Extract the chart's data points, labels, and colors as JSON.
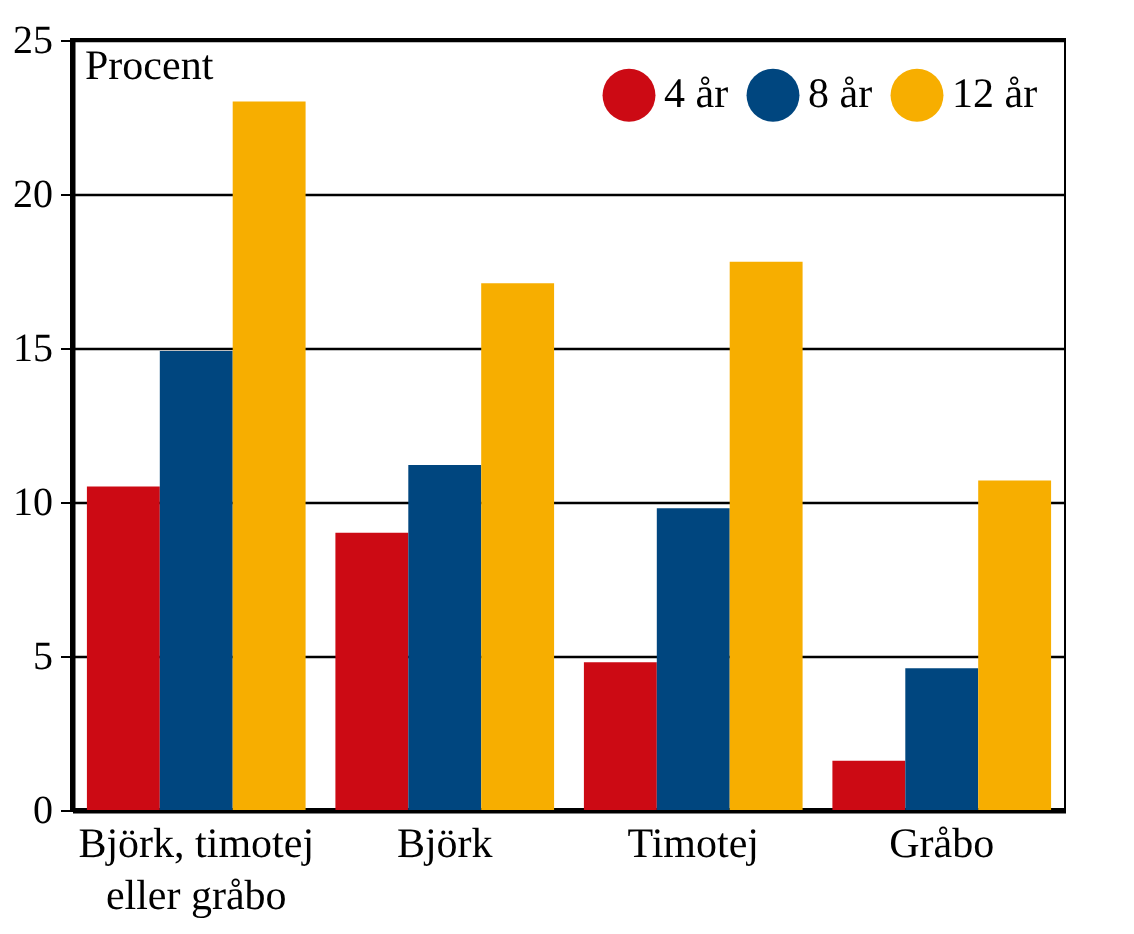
{
  "chart_data": {
    "type": "bar",
    "ylabel": "Procent",
    "categories": [
      "Björk, timotej eller gråbo",
      "Björk",
      "Timotej",
      "Gråbo"
    ],
    "series": [
      {
        "name": "4 år",
        "color": "#cc0a14",
        "values": [
          10.5,
          9.0,
          4.8,
          1.6
        ]
      },
      {
        "name": "8 år",
        "color": "#00467f",
        "values": [
          14.9,
          11.2,
          9.8,
          4.6
        ]
      },
      {
        "name": "12 år",
        "color": "#f7ae00",
        "values": [
          23.0,
          17.1,
          17.8,
          10.7
        ]
      }
    ],
    "ylim": [
      0,
      25
    ],
    "yticks": [
      0,
      5,
      10,
      15,
      20,
      25
    ],
    "grid": "y",
    "legend": "top right"
  }
}
